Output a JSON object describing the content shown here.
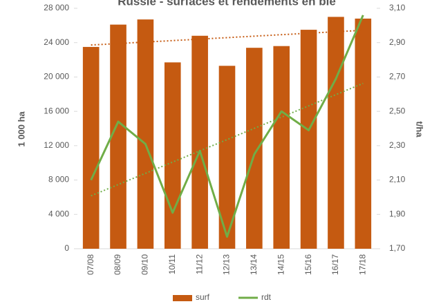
{
  "chart_data": {
    "type": "bar_line",
    "title": "Russie - surfaces et rendements en blé",
    "y_label": "1 000 ha",
    "y2_label": "t/ha",
    "categories": [
      "07/08",
      "08/09",
      "09/10",
      "10/11",
      "11/12",
      "12/13",
      "13/14",
      "14/15",
      "15/16",
      "16/17",
      "17/18"
    ],
    "series": [
      {
        "name": "surf",
        "type": "bar",
        "color": "#c55a11",
        "trendline": true,
        "values": [
          23500,
          26100,
          26700,
          21700,
          24800,
          21300,
          23400,
          23600,
          25500,
          27000,
          26800
        ]
      },
      {
        "name": "rdt",
        "type": "line",
        "axis": "y2",
        "color": "#70ad47",
        "trendline": true,
        "values": [
          2.1,
          2.44,
          2.31,
          1.91,
          2.27,
          1.77,
          2.25,
          2.5,
          2.39,
          2.69,
          3.06
        ]
      }
    ],
    "ylim": [
      0,
      28000
    ],
    "yticks": [
      0,
      {
        "value": 4000,
        "label": "4 000"
      },
      {
        "value": 8000,
        "label": "8 000"
      },
      {
        "value": 12000,
        "label": "12 000"
      },
      {
        "value": 16000,
        "label": "16 000"
      },
      {
        "value": 20000,
        "label": "20 000"
      },
      {
        "value": 24000,
        "label": "24 000"
      },
      {
        "value": 28000,
        "label": "28 000"
      }
    ],
    "y2lim": [
      1.7,
      3.1
    ],
    "y2ticks": [
      {
        "value": 1.7,
        "label": "1,70"
      },
      {
        "value": 1.9,
        "label": "1,90"
      },
      {
        "value": 2.1,
        "label": "2,10"
      },
      {
        "value": 2.3,
        "label": "2,30"
      },
      {
        "value": 2.5,
        "label": "2,50"
      },
      {
        "value": 2.7,
        "label": "2,70"
      },
      {
        "value": 2.9,
        "label": "2,90"
      },
      {
        "value": 3.1,
        "label": "3,10"
      }
    ],
    "legend": "bottom"
  }
}
